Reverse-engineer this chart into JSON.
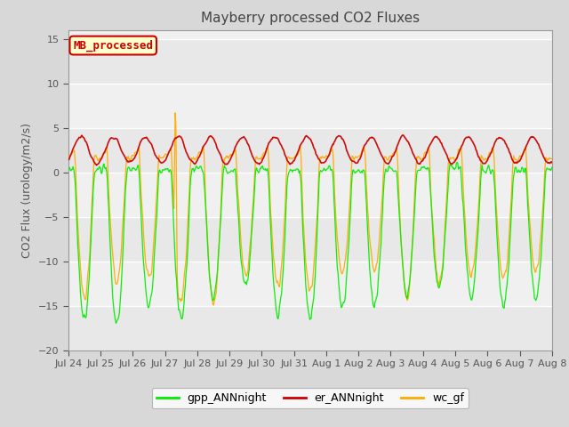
{
  "title": "Mayberry processed CO2 Fluxes",
  "ylabel": "CO2 Flux (urology/m2/s)",
  "ylim": [
    -20,
    16
  ],
  "yticks": [
    -20,
    -15,
    -10,
    -5,
    0,
    5,
    10,
    15
  ],
  "background_color": "#d8d8d8",
  "plot_bg_color": "#f0f0f0",
  "legend_label": "MB_processed",
  "legend_bg": "#ffffcc",
  "legend_border": "#cc0000",
  "line_colors": {
    "gpp": "#00ee00",
    "er": "#cc0000",
    "wc": "#ffaa00"
  },
  "legend_labels": [
    "gpp_ANNnight",
    "er_ANNnight",
    "wc_gf"
  ],
  "n_days": 15,
  "points_per_day": 48
}
